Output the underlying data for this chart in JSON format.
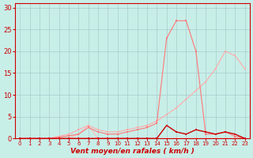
{
  "xlabel": "Vent moyen/en rafales ( km/h )",
  "bg_color": "#c8eee8",
  "grid_color": "#aacccc",
  "xlim": [
    -0.5,
    23.5
  ],
  "ylim": [
    0,
    31
  ],
  "yticks": [
    0,
    5,
    10,
    15,
    20,
    25,
    30
  ],
  "xticks": [
    0,
    1,
    2,
    3,
    4,
    5,
    6,
    7,
    8,
    9,
    10,
    11,
    12,
    13,
    14,
    15,
    16,
    17,
    18,
    19,
    20,
    21,
    22,
    23
  ],
  "line_lightest_x": [
    0,
    1,
    2,
    3,
    4,
    5,
    6,
    7,
    8,
    9,
    10,
    11,
    12,
    13,
    14,
    15,
    16,
    17,
    18,
    19,
    20,
    21,
    22,
    23
  ],
  "line_lightest_y": [
    0,
    0,
    0,
    0,
    0,
    0,
    1,
    3,
    0,
    0,
    0,
    0,
    0,
    0,
    0,
    0,
    0,
    0,
    0,
    0,
    0,
    0,
    0,
    0
  ],
  "line_light_x": [
    0,
    1,
    2,
    3,
    4,
    5,
    6,
    7,
    8,
    9,
    10,
    11,
    12,
    13,
    14,
    15,
    16,
    17,
    18,
    19,
    20,
    21,
    22,
    23
  ],
  "line_light_y": [
    0,
    0,
    0,
    0,
    0.5,
    1,
    2,
    3,
    2,
    1.5,
    1.5,
    2,
    2.5,
    3,
    4,
    5.5,
    7,
    9,
    11,
    13,
    16,
    20,
    19,
    16
  ],
  "line_mid_x": [
    0,
    1,
    2,
    3,
    4,
    5,
    6,
    7,
    8,
    9,
    10,
    11,
    12,
    13,
    14,
    15,
    16,
    17,
    18,
    19,
    20,
    21,
    22,
    23
  ],
  "line_mid_y": [
    0,
    0,
    0,
    0,
    0.3,
    0.6,
    1,
    2.5,
    1.5,
    1,
    1,
    1.5,
    2,
    2.5,
    3.5,
    23,
    27,
    27,
    20,
    1,
    1,
    1.5,
    0.5,
    0
  ],
  "line_dark_x": [
    0,
    1,
    2,
    3,
    4,
    5,
    6,
    7,
    8,
    9,
    10,
    11,
    12,
    13,
    14,
    15,
    16,
    17,
    18,
    19,
    20,
    21,
    22,
    23
  ],
  "line_dark_y": [
    0,
    0,
    0,
    0,
    0,
    0,
    0,
    0,
    0,
    0,
    0,
    0,
    0,
    0,
    0,
    3,
    1.5,
    1,
    2,
    1.5,
    1,
    1.5,
    1,
    0
  ],
  "line_lightest_color": "#ffbbbb",
  "line_light_color": "#ffaaaa",
  "line_mid_color": "#ff7777",
  "line_dark_color": "#cc0000",
  "xlabel_color": "#cc0000",
  "tick_color": "#cc0000",
  "spine_color": "#cc0000"
}
